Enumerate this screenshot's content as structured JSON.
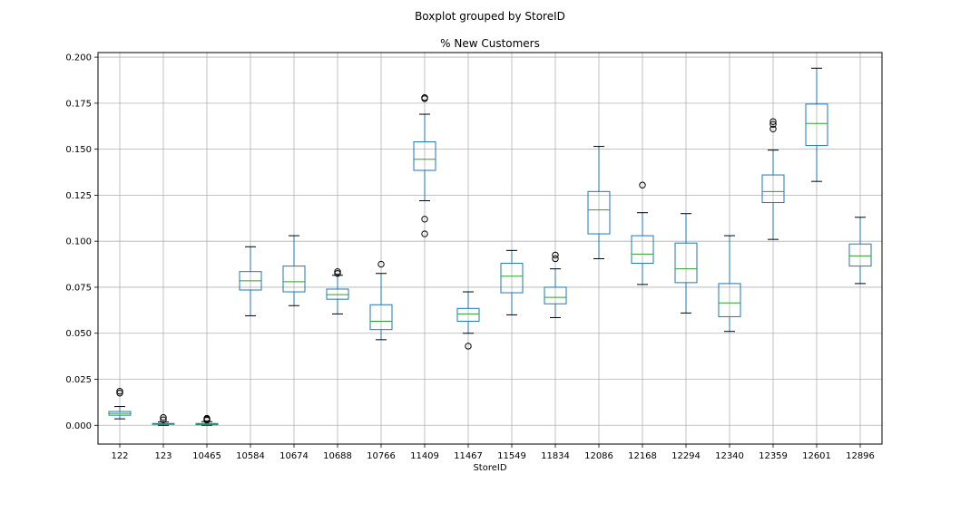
{
  "chart_data": {
    "type": "boxplot",
    "suptitle": "Boxplot grouped by StoreID",
    "title": "% New Customers",
    "xlabel": "StoreID",
    "ylabel": "",
    "ylim": [
      -0.0102,
      0.2025
    ],
    "yticks": [
      "0.000",
      "0.025",
      "0.050",
      "0.075",
      "0.100",
      "0.125",
      "0.150",
      "0.175",
      "0.200"
    ],
    "grid": true,
    "categories": [
      "122",
      "123",
      "10465",
      "10584",
      "10674",
      "10688",
      "10766",
      "11409",
      "11467",
      "11549",
      "11834",
      "12086",
      "12168",
      "12294",
      "12340",
      "12359",
      "12601",
      "12896"
    ],
    "boxes": [
      {
        "whislo": 0.0035,
        "q1": 0.0055,
        "med": 0.0065,
        "q3": 0.0075,
        "whishi": 0.0102,
        "fliers": [
          0.0175,
          0.0185
        ]
      },
      {
        "whislo": 0.0,
        "q1": 0.0005,
        "med": 0.0007,
        "q3": 0.001,
        "whishi": 0.0018,
        "fliers": [
          0.003,
          0.0042
        ]
      },
      {
        "whislo": 0.0,
        "q1": 0.0003,
        "med": 0.0006,
        "q3": 0.001,
        "whishi": 0.002,
        "fliers": [
          0.0028,
          0.0033,
          0.0038
        ]
      },
      {
        "whislo": 0.0595,
        "q1": 0.0735,
        "med": 0.0785,
        "q3": 0.0835,
        "whishi": 0.097,
        "fliers": []
      },
      {
        "whislo": 0.065,
        "q1": 0.0725,
        "med": 0.078,
        "q3": 0.0865,
        "whishi": 0.103,
        "fliers": []
      },
      {
        "whislo": 0.0605,
        "q1": 0.0685,
        "med": 0.071,
        "q3": 0.074,
        "whishi": 0.0815,
        "fliers": [
          0.0825,
          0.0835
        ]
      },
      {
        "whislo": 0.0465,
        "q1": 0.052,
        "med": 0.0565,
        "q3": 0.0655,
        "whishi": 0.0825,
        "fliers": [
          0.0875
        ]
      },
      {
        "whislo": 0.122,
        "q1": 0.1385,
        "med": 0.1445,
        "q3": 0.154,
        "whishi": 0.169,
        "fliers": [
          0.104,
          0.112,
          0.1775,
          0.178
        ]
      },
      {
        "whislo": 0.05,
        "q1": 0.0565,
        "med": 0.0605,
        "q3": 0.0635,
        "whishi": 0.0725,
        "fliers": [
          0.043
        ]
      },
      {
        "whislo": 0.06,
        "q1": 0.072,
        "med": 0.081,
        "q3": 0.088,
        "whishi": 0.095,
        "fliers": []
      },
      {
        "whislo": 0.0585,
        "q1": 0.066,
        "med": 0.0695,
        "q3": 0.075,
        "whishi": 0.085,
        "fliers": [
          0.0905,
          0.0925
        ]
      },
      {
        "whislo": 0.0905,
        "q1": 0.104,
        "med": 0.117,
        "q3": 0.127,
        "whishi": 0.1515,
        "fliers": []
      },
      {
        "whislo": 0.0765,
        "q1": 0.088,
        "med": 0.093,
        "q3": 0.103,
        "whishi": 0.1155,
        "fliers": [
          0.1305
        ]
      },
      {
        "whislo": 0.061,
        "q1": 0.0775,
        "med": 0.085,
        "q3": 0.099,
        "whishi": 0.115,
        "fliers": []
      },
      {
        "whislo": 0.051,
        "q1": 0.059,
        "med": 0.0665,
        "q3": 0.077,
        "whishi": 0.103,
        "fliers": []
      },
      {
        "whislo": 0.101,
        "q1": 0.121,
        "med": 0.127,
        "q3": 0.136,
        "whishi": 0.1495,
        "fliers": [
          0.161,
          0.1635,
          0.165
        ]
      },
      {
        "whislo": 0.1325,
        "q1": 0.152,
        "med": 0.164,
        "q3": 0.1745,
        "whishi": 0.194,
        "fliers": []
      },
      {
        "whislo": 0.077,
        "q1": 0.0865,
        "med": 0.092,
        "q3": 0.0985,
        "whishi": 0.113,
        "fliers": []
      }
    ],
    "colors": {
      "box": "#1f77b4",
      "median": "#2ca02c",
      "whisker": "#000000",
      "grid": "#b0b0b0"
    }
  }
}
